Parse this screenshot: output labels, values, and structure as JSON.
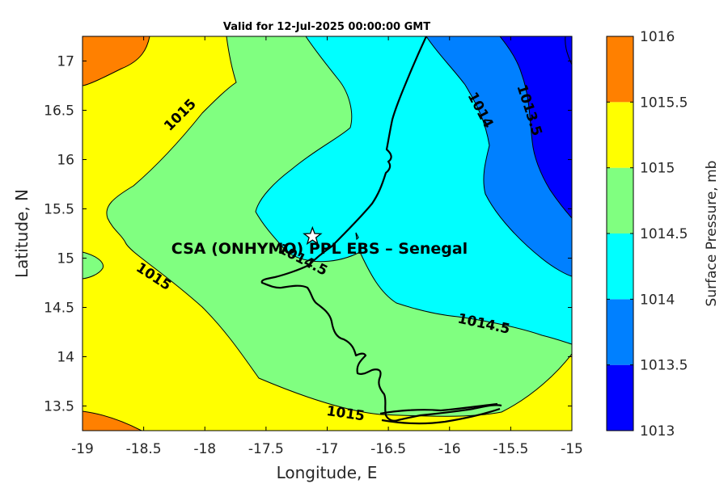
{
  "title": "Valid for 12-Jul-2025 00:00:00 GMT",
  "station": {
    "label": "CSA (ONHYMO) PPL EBS  – Senegal",
    "lon": -17.12,
    "lat": 15.22
  },
  "colors": {
    "c1013": "#0000ff",
    "c1013_5": "#0080ff",
    "c1014": "#00ffff",
    "c1014_5": "#80ff80",
    "c1015": "#ffff00",
    "c1015_5": "#ff8000",
    "c1016": "#ff0000"
  },
  "chart_data": {
    "type": "contour-map",
    "title": "Valid for 12-Jul-2025 00:00:00 GMT",
    "xlabel": "Longitude, E",
    "ylabel": "Latitude, N",
    "xlim": [
      -19,
      -15
    ],
    "ylim": [
      13.25,
      17.25
    ],
    "x_ticks": [
      "-19",
      "-18.5",
      "-18",
      "-17.5",
      "-17",
      "-16.5",
      "-16",
      "-15.5",
      "-15"
    ],
    "y_ticks": [
      "13.5",
      "14",
      "14.5",
      "15",
      "15.5",
      "16",
      "16.5",
      "17"
    ],
    "colorbar": {
      "label": "Surface Pressure, mb",
      "levels": [
        "1013",
        "1013.5",
        "1014",
        "1014.5",
        "1015",
        "1015.5",
        "1016"
      ]
    },
    "contour_labels": [
      {
        "text": "1015",
        "lon": -18.2,
        "lat": 16.45,
        "angle": -45
      },
      {
        "text": "1015",
        "lon": -18.42,
        "lat": 14.81,
        "angle": 33
      },
      {
        "text": "1015",
        "lon": -16.85,
        "lat": 13.42,
        "angle": 8
      },
      {
        "text": "1014.5",
        "lon": -17.2,
        "lat": 14.98,
        "angle": 27
      },
      {
        "text": "1014.5",
        "lon": -15.72,
        "lat": 14.33,
        "angle": 12
      },
      {
        "text": "1014",
        "lon": -15.75,
        "lat": 16.5,
        "angle": 62
      },
      {
        "text": "1013.5",
        "lon": -15.35,
        "lat": 16.5,
        "angle": 72
      }
    ]
  }
}
